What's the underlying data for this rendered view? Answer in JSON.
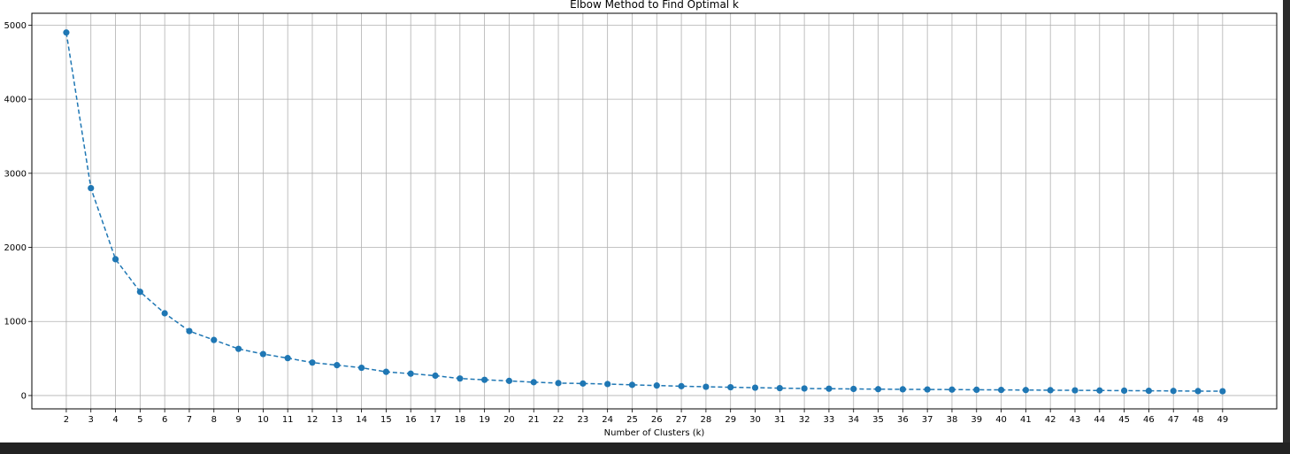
{
  "chart_data": {
    "type": "line",
    "title": "Elbow Method to Find Optimal k",
    "xlabel": "Number of Clusters (k)",
    "ylabel": "",
    "x": [
      2,
      3,
      4,
      5,
      6,
      7,
      8,
      9,
      10,
      11,
      12,
      13,
      14,
      15,
      16,
      17,
      18,
      19,
      20,
      21,
      22,
      23,
      24,
      25,
      26,
      27,
      28,
      29,
      30,
      31,
      32,
      33,
      34,
      35,
      36,
      37,
      38,
      39,
      40,
      41,
      42,
      43,
      44,
      45,
      46,
      47,
      48,
      49
    ],
    "series": [
      {
        "values": [
          4900,
          2800,
          1840,
          1400,
          1110,
          870,
          750,
          630,
          560,
          505,
          445,
          410,
          375,
          320,
          295,
          268,
          230,
          212,
          198,
          180,
          168,
          162,
          155,
          144,
          135,
          126,
          118,
          112,
          106,
          100,
          95,
          92,
          89,
          86,
          84,
          82,
          80,
          78,
          76,
          74,
          72,
          70,
          68,
          66,
          64,
          62,
          60,
          58
        ],
        "color": "#1f77b4",
        "line_style": "dashed",
        "marker": "circle"
      }
    ],
    "xticks": [
      "2",
      "3",
      "4",
      "5",
      "6",
      "7",
      "8",
      "9",
      "10",
      "11",
      "12",
      "13",
      "14",
      "15",
      "16",
      "17",
      "18",
      "19",
      "20",
      "21",
      "22",
      "23",
      "24",
      "25",
      "26",
      "27",
      "28",
      "29",
      "30",
      "31",
      "32",
      "33",
      "34",
      "35",
      "36",
      "37",
      "38",
      "39",
      "40",
      "41",
      "42",
      "43",
      "44",
      "45",
      "46",
      "47",
      "48",
      "49"
    ],
    "yticks": [
      "0",
      "1000",
      "2000",
      "3000",
      "4000",
      "5000"
    ],
    "yticks_values": [
      0,
      1000,
      2000,
      3000,
      4000,
      5000
    ],
    "xlim": [
      0.6,
      51.2
    ],
    "ylim": [
      -180,
      5160
    ],
    "grid": true
  }
}
